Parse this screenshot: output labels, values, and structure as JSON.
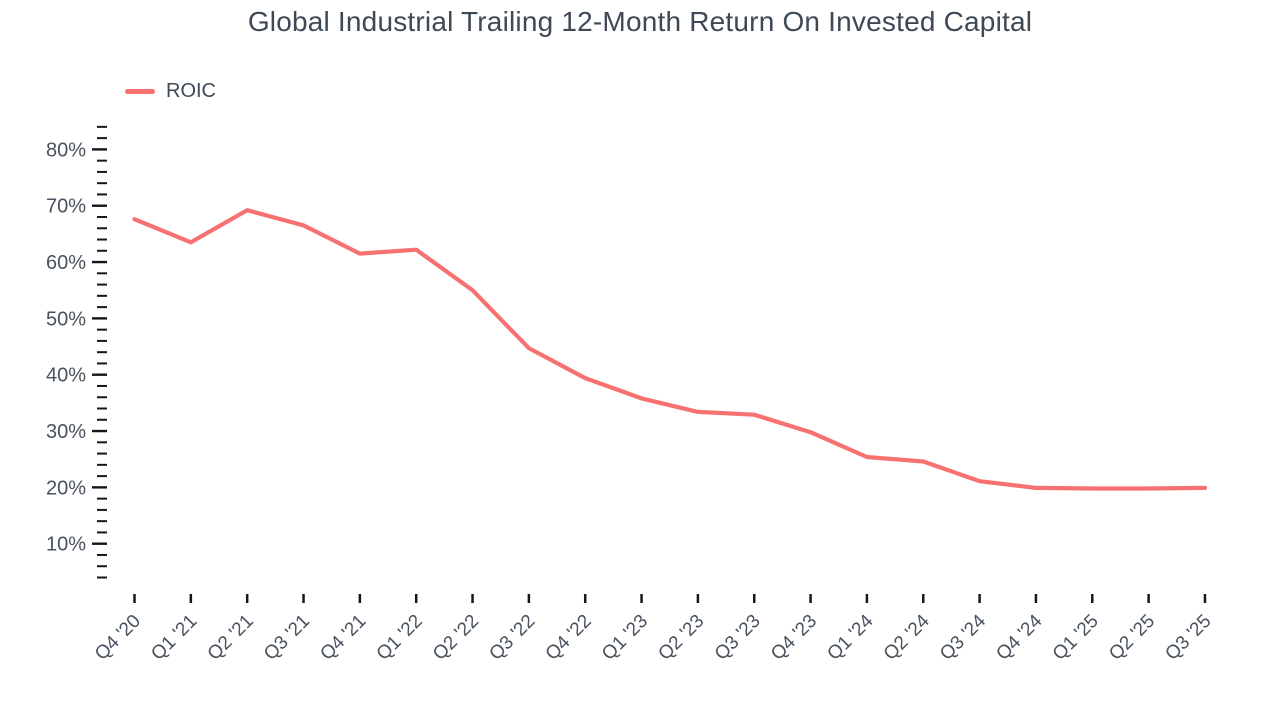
{
  "title": "Global Industrial Trailing 12-Month Return On Invested Capital",
  "legend": {
    "items": [
      {
        "label": "ROIC",
        "color": "#F87171"
      }
    ],
    "position": "top-left"
  },
  "colors": {
    "line": "#F87171",
    "title_text": "#3E4956",
    "axis_text": "#49525E",
    "tick_mark": "#14171C",
    "background": "#FFFFFF"
  },
  "chart_data": {
    "type": "line",
    "title": "Global Industrial Trailing 12-Month Return On Invested Capital",
    "xlabel": "",
    "ylabel": "",
    "grid": false,
    "legend_position": "top-left",
    "categories": [
      "Q4 '20",
      "Q1 '21",
      "Q2 '21",
      "Q3 '21",
      "Q4 '21",
      "Q1 '22",
      "Q2 '22",
      "Q3 '22",
      "Q4 '22",
      "Q1 '23",
      "Q2 '23",
      "Q3 '23",
      "Q4 '23",
      "Q1 '24",
      "Q2 '24",
      "Q3 '24",
      "Q4 '24",
      "Q1 '25",
      "Q2 '25",
      "Q3 '25"
    ],
    "series": [
      {
        "name": "ROIC",
        "color": "#F87171",
        "unit": "%",
        "values": [
          67.6,
          63.5,
          69.2,
          66.5,
          61.5,
          62.2,
          55.0,
          44.7,
          39.4,
          35.8,
          33.4,
          32.9,
          29.8,
          25.4,
          24.6,
          21.1,
          19.9,
          19.8,
          19.8,
          19.9
        ]
      }
    ],
    "y_axis": {
      "min": 4,
      "max": 84,
      "minor_tick_step": 2,
      "major_tick_step": 10,
      "tick_labels": [
        "10%",
        "20%",
        "30%",
        "40%",
        "50%",
        "60%",
        "70%",
        "80%"
      ],
      "tick_label_values": [
        10,
        20,
        30,
        40,
        50,
        60,
        70,
        80
      ],
      "format": "percent"
    },
    "x_axis": {
      "tick_count": 20,
      "label_rotation_deg": -45
    }
  }
}
